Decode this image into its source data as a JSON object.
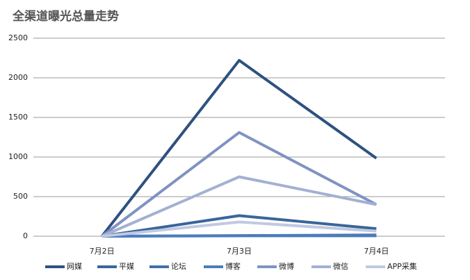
{
  "chart_data": {
    "type": "line",
    "title": "全渠道曝光总量走势",
    "categories": [
      "7月2日",
      "7月3日",
      "7月4日"
    ],
    "series": [
      {
        "name": "网媒",
        "color": "#2f5180",
        "values": [
          0,
          2220,
          985
        ]
      },
      {
        "name": "平媒",
        "color": "#3a6599",
        "values": [
          0,
          260,
          95
        ]
      },
      {
        "name": "论坛",
        "color": "#4370a8",
        "values": [
          0,
          8,
          15
        ]
      },
      {
        "name": "博客",
        "color": "#4b7dbd",
        "values": [
          0,
          5,
          5
        ]
      },
      {
        "name": "微博",
        "color": "#7f93c2",
        "values": [
          0,
          1310,
          400
        ]
      },
      {
        "name": "微信",
        "color": "#a3b0d3",
        "values": [
          0,
          750,
          400
        ]
      },
      {
        "name": "APP采集",
        "color": "#c0c9e3",
        "values": [
          0,
          180,
          65
        ]
      }
    ],
    "ylim": [
      0,
      2500
    ],
    "yticks": [
      0,
      500,
      1000,
      1500,
      2000,
      2500
    ],
    "grid": true
  }
}
